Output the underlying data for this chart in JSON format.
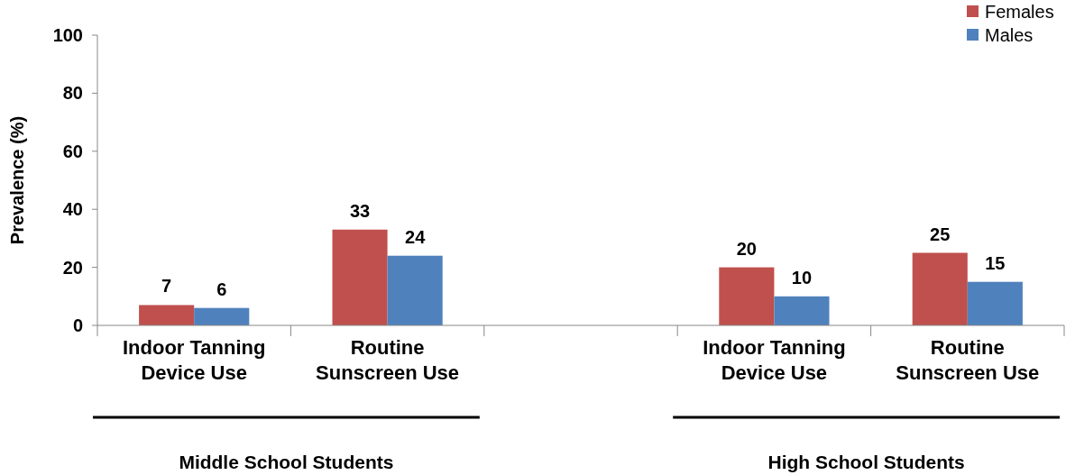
{
  "chart_data": {
    "type": "bar",
    "ylabel": "Prevalence (%)",
    "categories": [
      "Indoor Tanning Device Use",
      "Routine Sunscreen Use",
      null,
      "Indoor Tanning Device Use",
      "Routine Sunscreen Use"
    ],
    "series": [
      {
        "name": "Females",
        "color": "#c0504d",
        "values": [
          7,
          33,
          null,
          20,
          25
        ]
      },
      {
        "name": "Males",
        "color": "#4f81bd",
        "values": [
          6,
          24,
          null,
          10,
          15
        ]
      }
    ],
    "ylim": [
      0,
      100
    ],
    "yticks": [
      0,
      20,
      40,
      60,
      80,
      100
    ],
    "grid": false,
    "legend": "top right",
    "data_labels": true,
    "annotations": [
      "Middle School Students",
      "High School Students"
    ]
  }
}
